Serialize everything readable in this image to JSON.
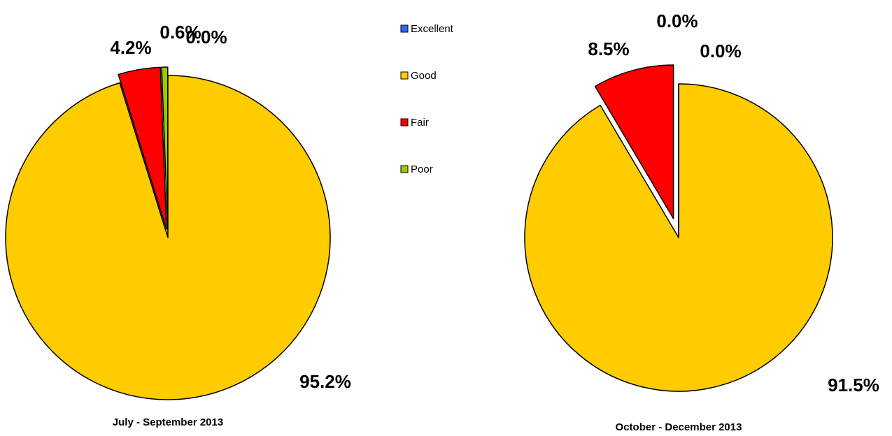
{
  "chart_data": [
    {
      "type": "pie",
      "title": "July - September 2013",
      "categories": [
        "Excellent",
        "Good",
        "Fair",
        "Poor"
      ],
      "colors": [
        "#3366ff",
        "#ffcc00",
        "#ff0000",
        "#99cc00"
      ],
      "values": [
        0.0,
        95.2,
        4.2,
        0.6
      ],
      "value_labels": [
        "0.0%",
        "95.2%",
        "4.2%",
        "0.6%"
      ],
      "legend": "top"
    },
    {
      "type": "pie",
      "title": "October - December 2013",
      "categories": [
        "Excellent",
        "Good",
        "Fair",
        "Poor"
      ],
      "colors": [
        "#3366ff",
        "#ffcc00",
        "#ff0000",
        "#99cc00"
      ],
      "values": [
        0.0,
        91.5,
        8.5,
        0.0
      ],
      "value_labels": [
        "0.0%",
        "91.5%",
        "8.5%",
        "0.0%"
      ]
    }
  ]
}
